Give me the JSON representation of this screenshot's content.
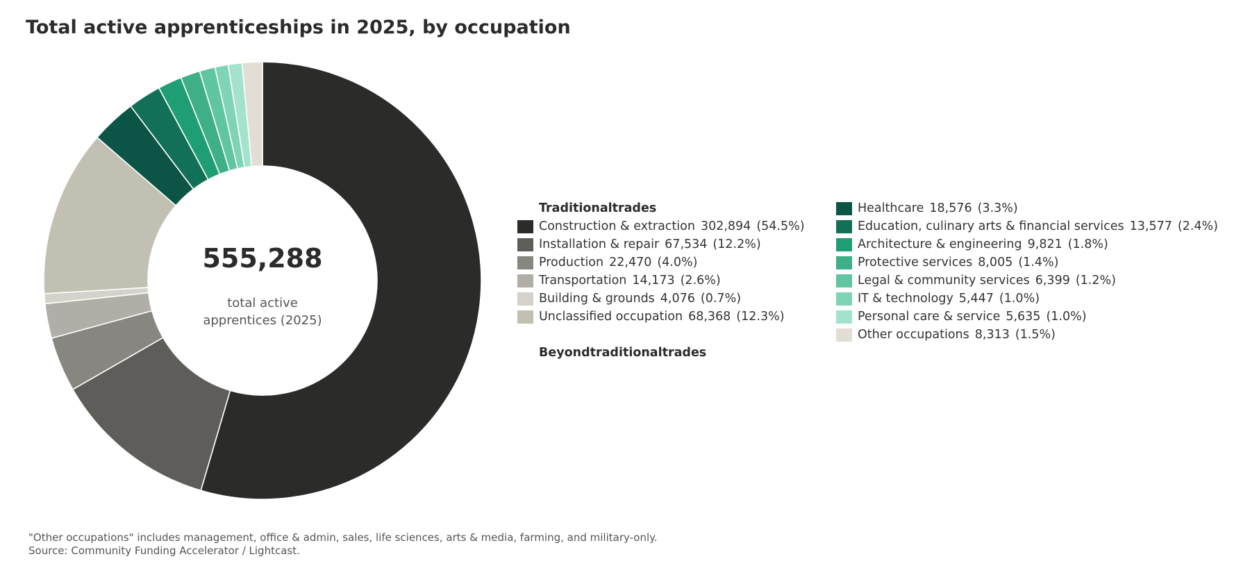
{
  "chart_data": {
    "type": "pie",
    "title": "Total active apprenticeships in 2025, by occupation",
    "center": {
      "value": "555,288",
      "label_line1": "total active",
      "label_line2": "apprentices (2025)"
    },
    "groups": [
      {
        "name": "Traditionaltrades",
        "range": [
          0,
          6
        ]
      },
      {
        "name": "Beyondtraditionaltrades",
        "range": [
          6,
          14
        ]
      }
    ],
    "slices": [
      {
        "label": "Construction & extraction",
        "value": 302894,
        "value_text": "302,894",
        "pct": "(54.5%)",
        "color": "#2b2b29"
      },
      {
        "label": "Installation & repair",
        "value": 67534,
        "value_text": "67,534",
        "pct": "(12.2%)",
        "color": "#5e5d59"
      },
      {
        "label": "Production",
        "value": 22470,
        "value_text": "22,470",
        "pct": "(4.0%)",
        "color": "#878680"
      },
      {
        "label": "Transportation",
        "value": 14173,
        "value_text": "14,173",
        "pct": "(2.6%)",
        "color": "#b0aea6"
      },
      {
        "label": "Building & grounds",
        "value": 4076,
        "value_text": "4,076",
        "pct": "(0.7%)",
        "color": "#d4d2ca"
      },
      {
        "label": "Unclassified occupation",
        "value": 68368,
        "value_text": "68,368",
        "pct": "(12.3%)",
        "color": "#c2bfb3"
      },
      {
        "label": "Healthcare",
        "value": 18576,
        "value_text": "18,576",
        "pct": "(3.3%)",
        "color": "#0b5446"
      },
      {
        "label": "Education, culinary arts & financial services",
        "value": 13577,
        "value_text": "13,577",
        "pct": "(2.4%)",
        "color": "#137058"
      },
      {
        "label": "Architecture & engineering",
        "value": 9821,
        "value_text": "9,821",
        "pct": "(1.8%)",
        "color": "#1f9e75"
      },
      {
        "label": "Protective services",
        "value": 8005,
        "value_text": "8,005",
        "pct": "(1.4%)",
        "color": "#3faf87"
      },
      {
        "label": "Legal & community services",
        "value": 6399,
        "value_text": "6,399",
        "pct": "(1.2%)",
        "color": "#5fc6a1"
      },
      {
        "label": "IT & technology",
        "value": 5447,
        "value_text": "5,447",
        "pct": "(1.0%)",
        "color": "#7fd4b6"
      },
      {
        "label": "Personal care & service",
        "value": 5635,
        "value_text": "5,635",
        "pct": "(1.0%)",
        "color": "#a3e2cc"
      },
      {
        "label": "Other occupations",
        "value": 8313,
        "value_text": "8,313",
        "pct": "(1.5%)",
        "color": "#e2ddd5"
      }
    ],
    "legend_placement": "right"
  },
  "footnote": {
    "line1": "\"Other occupations\" includes management, office & admin, sales, life sciences, arts & media, farming, and military-only.",
    "line2": "Source: Community Funding Accelerator / Lightcast."
  }
}
